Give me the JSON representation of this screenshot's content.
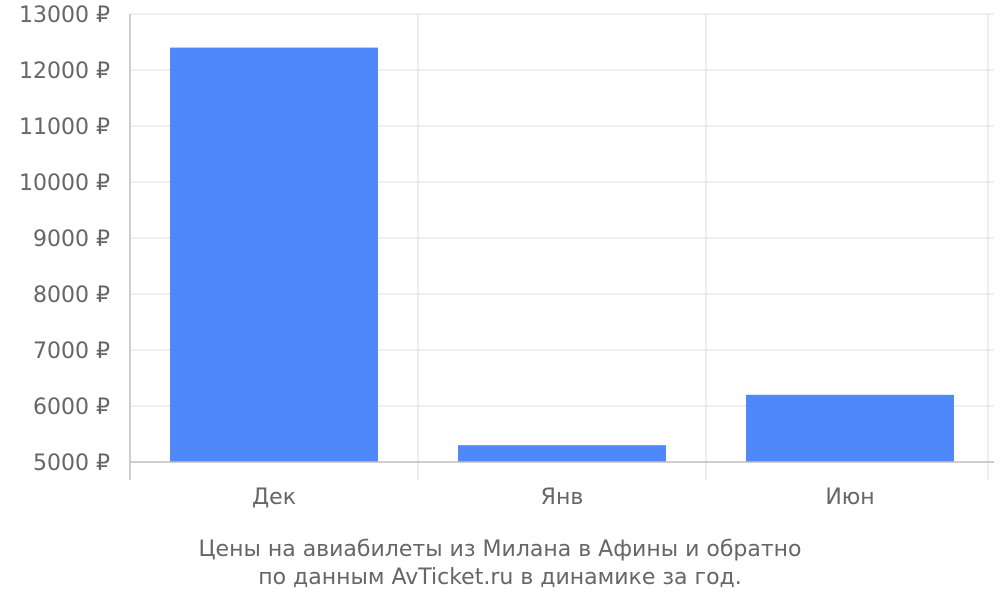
{
  "chart_data": {
    "type": "bar",
    "categories": [
      "Дек",
      "Янв",
      "Июн"
    ],
    "values": [
      12400,
      5300,
      6200
    ],
    "ylim": [
      5000,
      13000
    ],
    "yticks": [
      5000,
      6000,
      7000,
      8000,
      9000,
      10000,
      11000,
      12000,
      13000
    ],
    "ytick_suffix": " ₽",
    "grid": true,
    "bar_color": "#4d89f9",
    "caption": {
      "line1": "Цены на авиабилеты из Милана в Афины и обратно",
      "line2": "по данным AvTicket.ru в динамике за год."
    }
  }
}
